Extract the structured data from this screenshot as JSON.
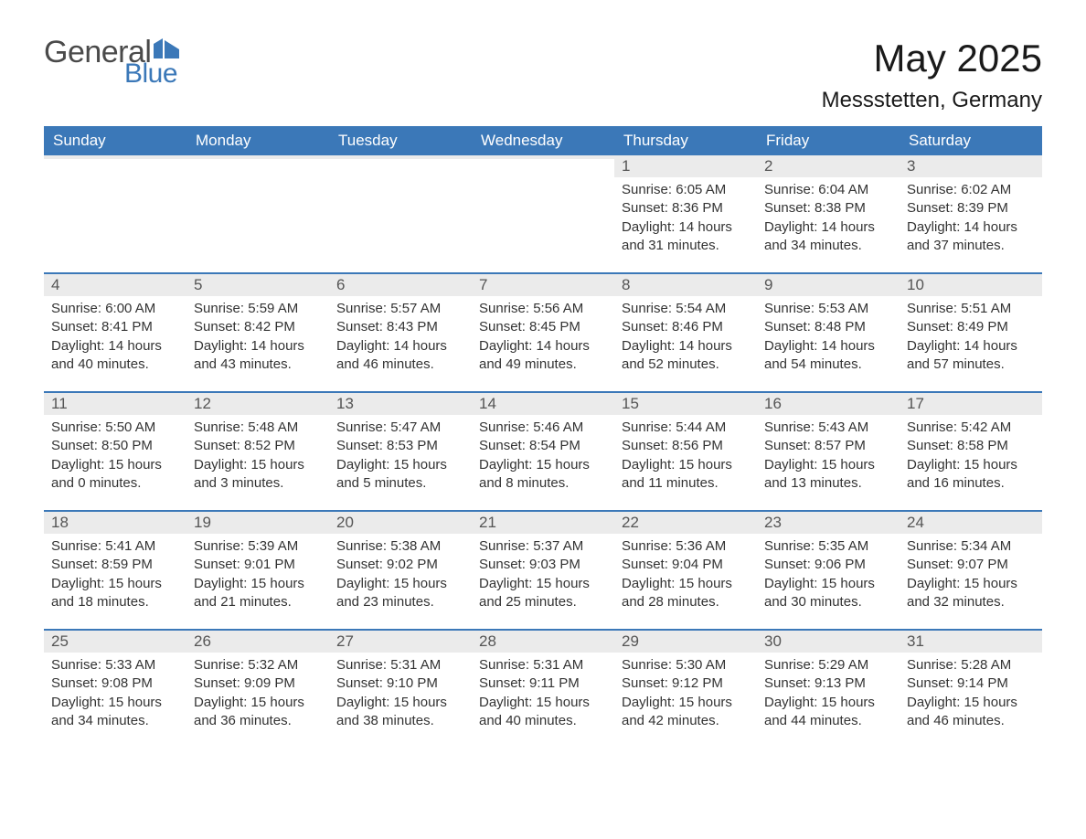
{
  "brand": {
    "part1": "General",
    "part2": "Blue"
  },
  "title": "May 2025",
  "location": "Messstetten, Germany",
  "colors": {
    "header_bg": "#3b78b8",
    "header_text": "#ffffff",
    "daynum_bg": "#ebebeb",
    "body_text": "#333333",
    "accent": "#3b78b8",
    "page_bg": "#ffffff"
  },
  "typography": {
    "title_fontsize": 42,
    "location_fontsize": 24,
    "dayheader_fontsize": 17,
    "body_fontsize": 15
  },
  "layout": {
    "columns": 7,
    "rows": 5,
    "first_day_column_index": 4
  },
  "day_names": [
    "Sunday",
    "Monday",
    "Tuesday",
    "Wednesday",
    "Thursday",
    "Friday",
    "Saturday"
  ],
  "labels": {
    "sunrise": "Sunrise:",
    "sunset": "Sunset:",
    "daylight": "Daylight:"
  },
  "days": [
    {
      "n": 1,
      "sunrise": "6:05 AM",
      "sunset": "8:36 PM",
      "daylight": "14 hours and 31 minutes."
    },
    {
      "n": 2,
      "sunrise": "6:04 AM",
      "sunset": "8:38 PM",
      "daylight": "14 hours and 34 minutes."
    },
    {
      "n": 3,
      "sunrise": "6:02 AM",
      "sunset": "8:39 PM",
      "daylight": "14 hours and 37 minutes."
    },
    {
      "n": 4,
      "sunrise": "6:00 AM",
      "sunset": "8:41 PM",
      "daylight": "14 hours and 40 minutes."
    },
    {
      "n": 5,
      "sunrise": "5:59 AM",
      "sunset": "8:42 PM",
      "daylight": "14 hours and 43 minutes."
    },
    {
      "n": 6,
      "sunrise": "5:57 AM",
      "sunset": "8:43 PM",
      "daylight": "14 hours and 46 minutes."
    },
    {
      "n": 7,
      "sunrise": "5:56 AM",
      "sunset": "8:45 PM",
      "daylight": "14 hours and 49 minutes."
    },
    {
      "n": 8,
      "sunrise": "5:54 AM",
      "sunset": "8:46 PM",
      "daylight": "14 hours and 52 minutes."
    },
    {
      "n": 9,
      "sunrise": "5:53 AM",
      "sunset": "8:48 PM",
      "daylight": "14 hours and 54 minutes."
    },
    {
      "n": 10,
      "sunrise": "5:51 AM",
      "sunset": "8:49 PM",
      "daylight": "14 hours and 57 minutes."
    },
    {
      "n": 11,
      "sunrise": "5:50 AM",
      "sunset": "8:50 PM",
      "daylight": "15 hours and 0 minutes."
    },
    {
      "n": 12,
      "sunrise": "5:48 AM",
      "sunset": "8:52 PM",
      "daylight": "15 hours and 3 minutes."
    },
    {
      "n": 13,
      "sunrise": "5:47 AM",
      "sunset": "8:53 PM",
      "daylight": "15 hours and 5 minutes."
    },
    {
      "n": 14,
      "sunrise": "5:46 AM",
      "sunset": "8:54 PM",
      "daylight": "15 hours and 8 minutes."
    },
    {
      "n": 15,
      "sunrise": "5:44 AM",
      "sunset": "8:56 PM",
      "daylight": "15 hours and 11 minutes."
    },
    {
      "n": 16,
      "sunrise": "5:43 AM",
      "sunset": "8:57 PM",
      "daylight": "15 hours and 13 minutes."
    },
    {
      "n": 17,
      "sunrise": "5:42 AM",
      "sunset": "8:58 PM",
      "daylight": "15 hours and 16 minutes."
    },
    {
      "n": 18,
      "sunrise": "5:41 AM",
      "sunset": "8:59 PM",
      "daylight": "15 hours and 18 minutes."
    },
    {
      "n": 19,
      "sunrise": "5:39 AM",
      "sunset": "9:01 PM",
      "daylight": "15 hours and 21 minutes."
    },
    {
      "n": 20,
      "sunrise": "5:38 AM",
      "sunset": "9:02 PM",
      "daylight": "15 hours and 23 minutes."
    },
    {
      "n": 21,
      "sunrise": "5:37 AM",
      "sunset": "9:03 PM",
      "daylight": "15 hours and 25 minutes."
    },
    {
      "n": 22,
      "sunrise": "5:36 AM",
      "sunset": "9:04 PM",
      "daylight": "15 hours and 28 minutes."
    },
    {
      "n": 23,
      "sunrise": "5:35 AM",
      "sunset": "9:06 PM",
      "daylight": "15 hours and 30 minutes."
    },
    {
      "n": 24,
      "sunrise": "5:34 AM",
      "sunset": "9:07 PM",
      "daylight": "15 hours and 32 minutes."
    },
    {
      "n": 25,
      "sunrise": "5:33 AM",
      "sunset": "9:08 PM",
      "daylight": "15 hours and 34 minutes."
    },
    {
      "n": 26,
      "sunrise": "5:32 AM",
      "sunset": "9:09 PM",
      "daylight": "15 hours and 36 minutes."
    },
    {
      "n": 27,
      "sunrise": "5:31 AM",
      "sunset": "9:10 PM",
      "daylight": "15 hours and 38 minutes."
    },
    {
      "n": 28,
      "sunrise": "5:31 AM",
      "sunset": "9:11 PM",
      "daylight": "15 hours and 40 minutes."
    },
    {
      "n": 29,
      "sunrise": "5:30 AM",
      "sunset": "9:12 PM",
      "daylight": "15 hours and 42 minutes."
    },
    {
      "n": 30,
      "sunrise": "5:29 AM",
      "sunset": "9:13 PM",
      "daylight": "15 hours and 44 minutes."
    },
    {
      "n": 31,
      "sunrise": "5:28 AM",
      "sunset": "9:14 PM",
      "daylight": "15 hours and 46 minutes."
    }
  ]
}
